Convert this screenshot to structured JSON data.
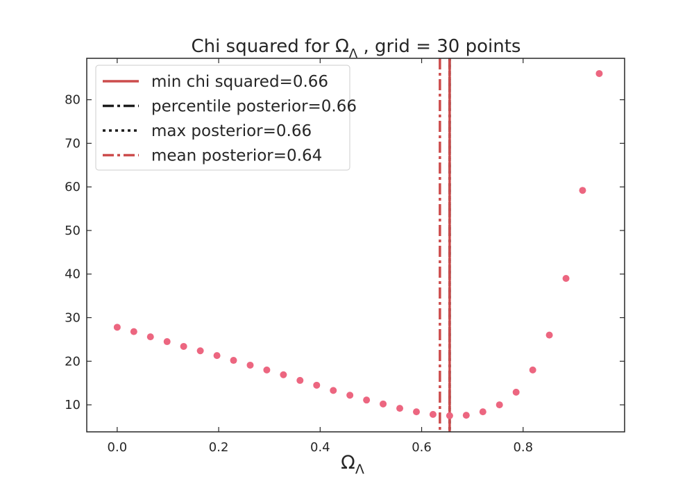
{
  "chart_data": {
    "type": "scatter",
    "title": {
      "prefix": "Chi squared for Ω",
      "sub": "Λ",
      "suffix": " , grid = 30 points"
    },
    "xlabel": {
      "main": "Ω",
      "sub": "Λ"
    },
    "ylabel": "",
    "xlim": [
      -0.06,
      1.0
    ],
    "ylim": [
      3.8,
      89.5
    ],
    "xticks": [
      0.0,
      0.2,
      0.4,
      0.6,
      0.8
    ],
    "xtick_labels": [
      "0.0",
      "0.2",
      "0.4",
      "0.6",
      "0.8"
    ],
    "yticks": [
      10,
      20,
      30,
      40,
      50,
      60,
      70,
      80
    ],
    "ytick_labels": [
      "10",
      "20",
      "30",
      "40",
      "50",
      "60",
      "70",
      "80"
    ],
    "grid": false,
    "legend_position": "top-left",
    "series": [
      {
        "kind": "points",
        "color": "#ec6680",
        "x": [
          0.0,
          0.0328,
          0.0655,
          0.0983,
          0.131,
          0.1638,
          0.1966,
          0.2293,
          0.2621,
          0.2948,
          0.3276,
          0.3603,
          0.3931,
          0.4259,
          0.4586,
          0.4914,
          0.5241,
          0.5569,
          0.5897,
          0.6224,
          0.6552,
          0.6879,
          0.7207,
          0.7534,
          0.7862,
          0.819,
          0.8517,
          0.8845,
          0.9172,
          0.95
        ],
        "y": [
          27.8,
          26.8,
          25.6,
          24.5,
          23.4,
          22.4,
          21.3,
          20.2,
          19.1,
          18.0,
          16.9,
          15.6,
          14.5,
          13.3,
          12.2,
          11.1,
          10.2,
          9.2,
          8.4,
          7.8,
          7.5,
          7.6,
          8.4,
          10.0,
          12.9,
          18.0,
          26.0,
          39.0,
          59.2,
          86.0
        ]
      }
    ],
    "vlines": [
      {
        "name": "min chi squared=0.66",
        "x": 0.6552,
        "color": "#cc4c4c",
        "style": "solid"
      },
      {
        "name": "percentile posterior=0.66",
        "x": 0.6552,
        "color": "#1c1c1c",
        "style": "dashdot"
      },
      {
        "name": "max posterior=0.66",
        "x": 0.6552,
        "color": "#1c1c1c",
        "style": "dotted"
      },
      {
        "name": "mean posterior=0.64",
        "x": 0.636,
        "color": "#cc4c4c",
        "style": "dashdot"
      }
    ]
  }
}
